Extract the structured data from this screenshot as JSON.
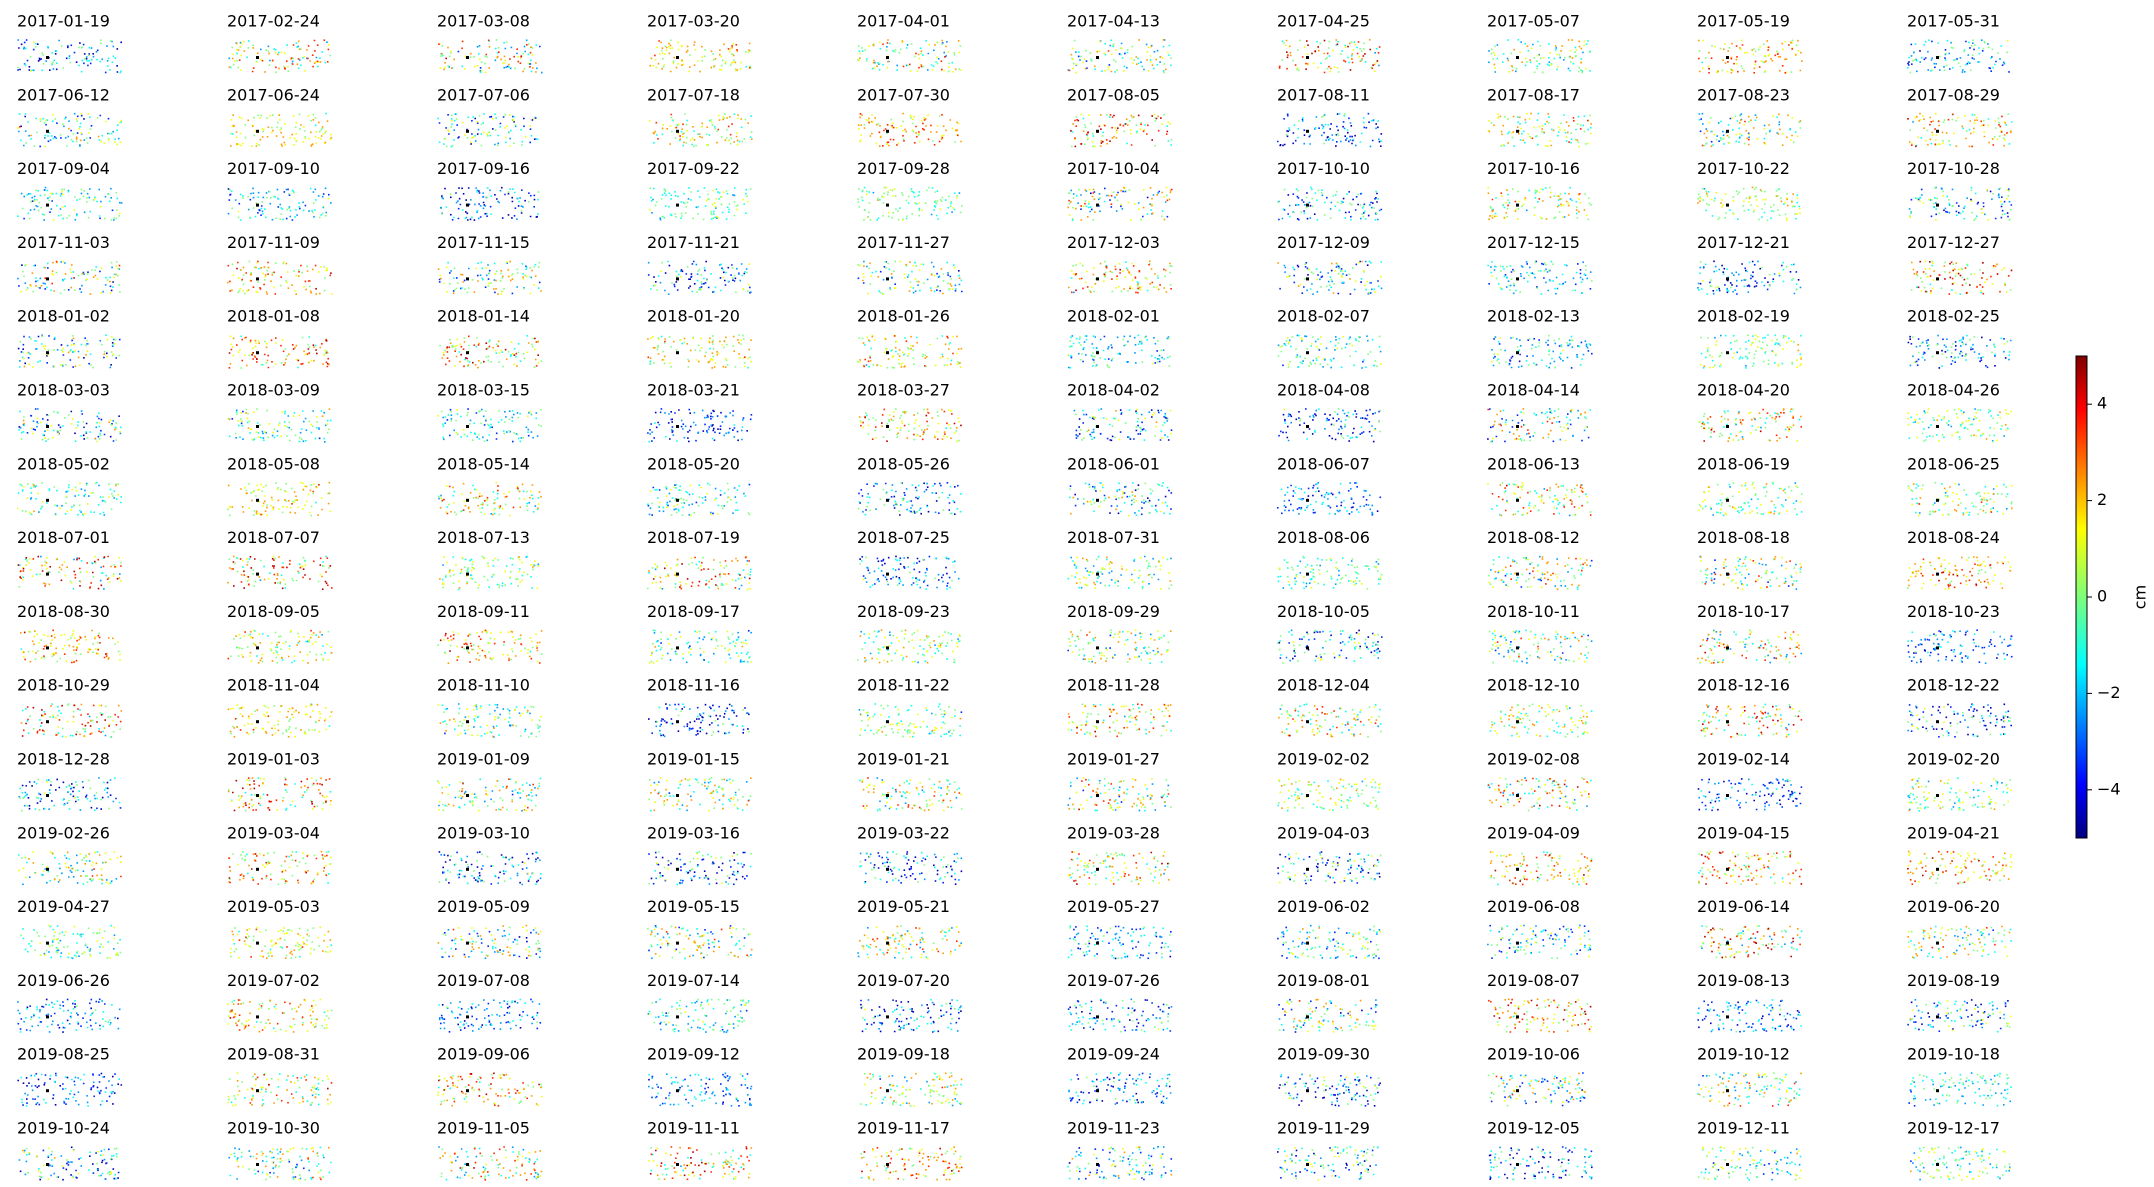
{
  "chart_data": {
    "type": "scatter-grid",
    "colormap": "jet",
    "panels": [
      "2017-01-19",
      "2017-02-24",
      "2017-03-08",
      "2017-03-20",
      "2017-04-01",
      "2017-04-13",
      "2017-04-25",
      "2017-05-07",
      "2017-05-19",
      "2017-05-31",
      "2017-06-12",
      "2017-06-24",
      "2017-07-06",
      "2017-07-18",
      "2017-07-30",
      "2017-08-05",
      "2017-08-11",
      "2017-08-17",
      "2017-08-23",
      "2017-08-29",
      "2017-09-04",
      "2017-09-10",
      "2017-09-16",
      "2017-09-22",
      "2017-09-28",
      "2017-10-04",
      "2017-10-10",
      "2017-10-16",
      "2017-10-22",
      "2017-10-28",
      "2017-11-03",
      "2017-11-09",
      "2017-11-15",
      "2017-11-21",
      "2017-11-27",
      "2017-12-03",
      "2017-12-09",
      "2017-12-15",
      "2017-12-21",
      "2017-12-27",
      "2018-01-02",
      "2018-01-08",
      "2018-01-14",
      "2018-01-20",
      "2018-01-26",
      "2018-02-01",
      "2018-02-07",
      "2018-02-13",
      "2018-02-19",
      "2018-02-25",
      "2018-03-03",
      "2018-03-09",
      "2018-03-15",
      "2018-03-21",
      "2018-03-27",
      "2018-04-02",
      "2018-04-08",
      "2018-04-14",
      "2018-04-20",
      "2018-04-26",
      "2018-05-02",
      "2018-05-08",
      "2018-05-14",
      "2018-05-20",
      "2018-05-26",
      "2018-06-01",
      "2018-06-07",
      "2018-06-13",
      "2018-06-19",
      "2018-06-25",
      "2018-07-01",
      "2018-07-07",
      "2018-07-13",
      "2018-07-19",
      "2018-07-25",
      "2018-07-31",
      "2018-08-06",
      "2018-08-12",
      "2018-08-18",
      "2018-08-24",
      "2018-08-30",
      "2018-09-05",
      "2018-09-11",
      "2018-09-17",
      "2018-09-23",
      "2018-09-29",
      "2018-10-05",
      "2018-10-11",
      "2018-10-17",
      "2018-10-23",
      "2018-10-29",
      "2018-11-04",
      "2018-11-10",
      "2018-11-16",
      "2018-11-22",
      "2018-11-28",
      "2018-12-04",
      "2018-12-10",
      "2018-12-16",
      "2018-12-22",
      "2018-12-28",
      "2019-01-03",
      "2019-01-09",
      "2019-01-15",
      "2019-01-21",
      "2019-01-27",
      "2019-02-02",
      "2019-02-08",
      "2019-02-14",
      "2019-02-20",
      "2019-02-26",
      "2019-03-04",
      "2019-03-10",
      "2019-03-16",
      "2019-03-22",
      "2019-03-28",
      "2019-04-03",
      "2019-04-09",
      "2019-04-15",
      "2019-04-21",
      "2019-04-27",
      "2019-05-03",
      "2019-05-09",
      "2019-05-15",
      "2019-05-21",
      "2019-05-27",
      "2019-06-02",
      "2019-06-08",
      "2019-06-14",
      "2019-06-20",
      "2019-06-26",
      "2019-07-02",
      "2019-07-08",
      "2019-07-14",
      "2019-07-20",
      "2019-07-26",
      "2019-08-01",
      "2019-08-07",
      "2019-08-13",
      "2019-08-19",
      "2019-08-25",
      "2019-08-31",
      "2019-09-06",
      "2019-09-12",
      "2019-09-18",
      "2019-09-24",
      "2019-09-30",
      "2019-10-06",
      "2019-10-12",
      "2019-10-18",
      "2019-10-24",
      "2019-10-30",
      "2019-11-05",
      "2019-11-11",
      "2019-11-17",
      "2019-11-23",
      "2019-11-29",
      "2019-12-05",
      "2019-12-11",
      "2019-12-17"
    ],
    "colorbar": {
      "label": "cm",
      "clim": [
        -5,
        5
      ],
      "ticks": [
        {
          "value": -4,
          "label": "−4"
        },
        {
          "value": -2,
          "label": "−2"
        },
        0,
        2,
        4
      ]
    }
  }
}
